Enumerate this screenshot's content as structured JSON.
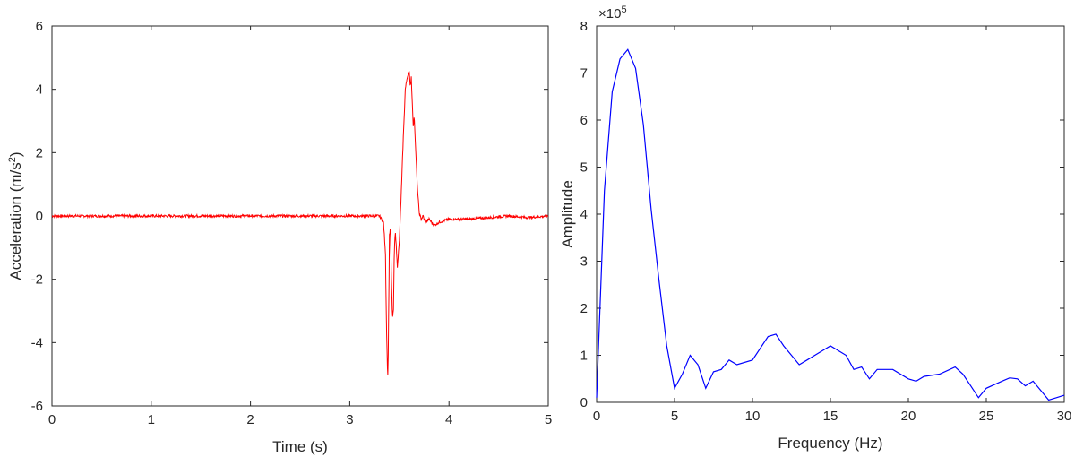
{
  "chart_data": [
    {
      "type": "line",
      "xlabel": "Time (s)",
      "ylabel_main": "Acceleration (m/s",
      "ylabel_sup": "2",
      "ylabel_close": ")",
      "xlim": [
        0,
        5
      ],
      "ylim": [
        -6,
        6
      ],
      "xticks": [
        "0",
        "1",
        "2",
        "3",
        "4",
        "5"
      ],
      "yticks": [
        "-6",
        "-4",
        "-2",
        "0",
        "2",
        "4",
        "6"
      ],
      "grid": false,
      "series": [
        {
          "color": "#ff0000",
          "noise": 0.04,
          "x": [
            0,
            3.3,
            3.34,
            3.36,
            3.37,
            3.38,
            3.385,
            3.39,
            3.4,
            3.41,
            3.42,
            3.43,
            3.44,
            3.45,
            3.46,
            3.48,
            3.5,
            3.52,
            3.54,
            3.56,
            3.58,
            3.6,
            3.61,
            3.62,
            3.63,
            3.64,
            3.65,
            3.66,
            3.68,
            3.7,
            3.72,
            3.74,
            3.76,
            3.8,
            3.85,
            3.9,
            3.95,
            4.0,
            4.2,
            4.4,
            4.6,
            4.8,
            5.0
          ],
          "y": [
            0.0,
            0.0,
            -0.2,
            -1.2,
            -3.5,
            -4.8,
            -5.1,
            -3.8,
            -0.6,
            -0.4,
            -2.0,
            -3.2,
            -3.0,
            -1.0,
            -0.5,
            -1.6,
            -0.8,
            0.8,
            2.5,
            4.0,
            4.4,
            4.5,
            4.1,
            4.4,
            3.6,
            2.8,
            3.2,
            2.4,
            1.0,
            0.1,
            -0.1,
            0.0,
            -0.2,
            -0.1,
            -0.3,
            -0.2,
            -0.15,
            -0.1,
            -0.1,
            -0.05,
            0.0,
            -0.05,
            0.0
          ]
        }
      ]
    },
    {
      "type": "line",
      "xlabel": "Frequency (Hz)",
      "ylabel": "Amplitude",
      "exponent_base": "×10",
      "exponent_power": "5",
      "xlim": [
        0,
        30
      ],
      "ylim": [
        0,
        8
      ],
      "xticks": [
        "0",
        "5",
        "10",
        "15",
        "20",
        "25",
        "30"
      ],
      "yticks": [
        "0",
        "1",
        "2",
        "3",
        "4",
        "5",
        "6",
        "7",
        "8"
      ],
      "grid": false,
      "series": [
        {
          "color": "#0000ff",
          "x": [
            0,
            0.5,
            1.0,
            1.5,
            2.0,
            2.5,
            3.0,
            3.5,
            4.0,
            4.5,
            5.0,
            5.5,
            6.0,
            6.5,
            7.0,
            7.5,
            8.0,
            8.5,
            9.0,
            10.0,
            11.0,
            11.5,
            12.0,
            12.5,
            13.0,
            13.5,
            14.0,
            15.0,
            16.0,
            16.5,
            17.0,
            17.5,
            18.0,
            19.0,
            20.0,
            20.5,
            21.0,
            22.0,
            23.0,
            23.5,
            24.0,
            24.5,
            25.0,
            26.0,
            26.5,
            27.0,
            27.5,
            28.0,
            28.5,
            29.0,
            29.5,
            30.0
          ],
          "y": [
            0.1,
            4.5,
            6.6,
            7.3,
            7.5,
            7.1,
            5.9,
            4.1,
            2.6,
            1.2,
            0.3,
            0.6,
            1.0,
            0.8,
            0.3,
            0.65,
            0.7,
            0.9,
            0.8,
            0.9,
            1.4,
            1.45,
            1.2,
            1.0,
            0.8,
            0.9,
            1.0,
            1.2,
            1.0,
            0.7,
            0.75,
            0.5,
            0.7,
            0.7,
            0.5,
            0.45,
            0.55,
            0.6,
            0.75,
            0.6,
            0.35,
            0.1,
            0.3,
            0.45,
            0.52,
            0.5,
            0.35,
            0.45,
            0.25,
            0.05,
            0.1,
            0.15
          ]
        }
      ]
    }
  ]
}
